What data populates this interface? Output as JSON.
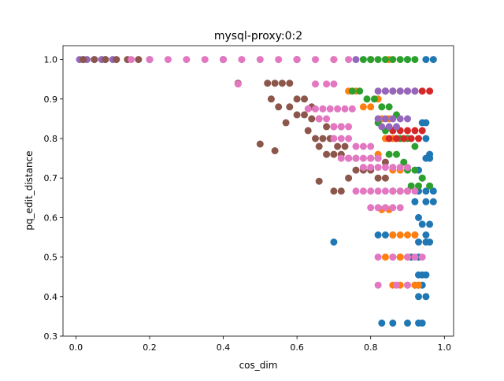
{
  "chart_data": {
    "type": "scatter",
    "title": "mysql-proxy:0:2",
    "xlabel": "cos_dim",
    "ylabel": "pq_edit_distance",
    "xlim": [
      -0.035,
      1.025
    ],
    "ylim": [
      0.3,
      1.035
    ],
    "xticks": [
      0.0,
      0.2,
      0.4,
      0.6,
      0.8,
      1.0
    ],
    "yticks": [
      0.3,
      0.4,
      0.5,
      0.6,
      0.7,
      0.8,
      0.9,
      1.0
    ],
    "grid": false,
    "legend": "none",
    "series": [
      {
        "color": "#1f77b4",
        "points": [
          [
            0.02,
            1.0
          ],
          [
            0.08,
            1.0
          ],
          [
            0.2,
            1.0
          ],
          [
            0.4,
            1.0
          ],
          [
            0.6,
            1.0
          ],
          [
            0.8,
            1.0
          ],
          [
            0.9,
            1.0
          ],
          [
            0.95,
            1.0
          ],
          [
            0.97,
            1.0
          ],
          [
            0.86,
            0.667
          ],
          [
            0.88,
            0.667
          ],
          [
            0.9,
            0.667
          ],
          [
            0.93,
            0.667
          ],
          [
            0.95,
            0.667
          ],
          [
            0.97,
            0.667
          ],
          [
            0.94,
            0.583
          ],
          [
            0.96,
            0.583
          ],
          [
            0.93,
            0.6
          ],
          [
            0.95,
            0.64
          ],
          [
            0.97,
            0.64
          ],
          [
            0.92,
            0.64
          ],
          [
            0.82,
            0.556
          ],
          [
            0.84,
            0.556
          ],
          [
            0.86,
            0.556
          ],
          [
            0.92,
            0.556
          ],
          [
            0.95,
            0.556
          ],
          [
            0.93,
            0.538
          ],
          [
            0.95,
            0.538
          ],
          [
            0.96,
            0.538
          ],
          [
            0.7,
            0.538
          ],
          [
            0.88,
            0.5
          ],
          [
            0.91,
            0.5
          ],
          [
            0.93,
            0.5
          ],
          [
            0.93,
            0.455
          ],
          [
            0.94,
            0.455
          ],
          [
            0.95,
            0.455
          ],
          [
            0.92,
            0.429
          ],
          [
            0.93,
            0.429
          ],
          [
            0.94,
            0.429
          ],
          [
            0.93,
            0.4
          ],
          [
            0.95,
            0.4
          ],
          [
            0.83,
            0.333
          ],
          [
            0.86,
            0.333
          ],
          [
            0.9,
            0.333
          ],
          [
            0.93,
            0.333
          ],
          [
            0.94,
            0.333
          ],
          [
            0.95,
            0.75
          ],
          [
            0.96,
            0.75
          ],
          [
            0.93,
            0.72
          ],
          [
            0.95,
            0.8
          ],
          [
            0.94,
            0.84
          ],
          [
            0.95,
            0.84
          ],
          [
            0.96,
            0.76
          ],
          [
            0.94,
            0.7
          ]
        ]
      },
      {
        "color": "#ff7f0e",
        "points": [
          [
            0.7,
            1.0
          ],
          [
            0.8,
            1.0
          ],
          [
            0.85,
            1.0
          ],
          [
            0.74,
            0.92
          ],
          [
            0.76,
            0.92
          ],
          [
            0.78,
            0.88
          ],
          [
            0.8,
            0.88
          ],
          [
            0.82,
            0.9
          ],
          [
            0.83,
            0.85
          ],
          [
            0.85,
            0.85
          ],
          [
            0.84,
            0.8
          ],
          [
            0.86,
            0.8
          ],
          [
            0.82,
            0.76
          ],
          [
            0.86,
            0.72
          ],
          [
            0.88,
            0.72
          ],
          [
            0.86,
            0.667
          ],
          [
            0.88,
            0.667
          ],
          [
            0.9,
            0.667
          ],
          [
            0.83,
            0.62
          ],
          [
            0.85,
            0.62
          ],
          [
            0.86,
            0.556
          ],
          [
            0.88,
            0.556
          ],
          [
            0.9,
            0.556
          ],
          [
            0.92,
            0.556
          ],
          [
            0.84,
            0.5
          ],
          [
            0.86,
            0.5
          ],
          [
            0.88,
            0.5
          ],
          [
            0.9,
            0.5
          ],
          [
            0.86,
            0.429
          ],
          [
            0.88,
            0.429
          ],
          [
            0.9,
            0.429
          ],
          [
            0.92,
            0.429
          ],
          [
            0.93,
            0.429
          ]
        ]
      },
      {
        "color": "#2ca02c",
        "points": [
          [
            0.78,
            1.0
          ],
          [
            0.8,
            1.0
          ],
          [
            0.82,
            1.0
          ],
          [
            0.84,
            1.0
          ],
          [
            0.86,
            1.0
          ],
          [
            0.88,
            1.0
          ],
          [
            0.9,
            1.0
          ],
          [
            0.92,
            1.0
          ],
          [
            0.75,
            0.92
          ],
          [
            0.77,
            0.92
          ],
          [
            0.79,
            0.9
          ],
          [
            0.81,
            0.9
          ],
          [
            0.83,
            0.88
          ],
          [
            0.85,
            0.88
          ],
          [
            0.87,
            0.86
          ],
          [
            0.82,
            0.84
          ],
          [
            0.84,
            0.82
          ],
          [
            0.86,
            0.82
          ],
          [
            0.88,
            0.8
          ],
          [
            0.9,
            0.8
          ],
          [
            0.92,
            0.78
          ],
          [
            0.85,
            0.76
          ],
          [
            0.87,
            0.76
          ],
          [
            0.89,
            0.74
          ],
          [
            0.9,
            0.72
          ],
          [
            0.92,
            0.72
          ],
          [
            0.94,
            0.7
          ],
          [
            0.91,
            0.68
          ],
          [
            0.93,
            0.68
          ],
          [
            0.96,
            0.68
          ]
        ]
      },
      {
        "color": "#d62728",
        "points": [
          [
            0.84,
            0.92
          ],
          [
            0.86,
            0.92
          ],
          [
            0.88,
            0.92
          ],
          [
            0.9,
            0.92
          ],
          [
            0.92,
            0.92
          ],
          [
            0.94,
            0.92
          ],
          [
            0.96,
            0.92
          ],
          [
            0.86,
            0.82
          ],
          [
            0.88,
            0.82
          ],
          [
            0.9,
            0.82
          ],
          [
            0.92,
            0.82
          ],
          [
            0.94,
            0.82
          ],
          [
            0.85,
            0.8
          ],
          [
            0.87,
            0.8
          ],
          [
            0.89,
            0.8
          ],
          [
            0.91,
            0.8
          ],
          [
            0.93,
            0.8
          ]
        ]
      },
      {
        "color": "#9467bd",
        "points": [
          [
            0.01,
            1.0
          ],
          [
            0.03,
            1.0
          ],
          [
            0.05,
            1.0
          ],
          [
            0.07,
            1.0
          ],
          [
            0.1,
            1.0
          ],
          [
            0.4,
            1.0
          ],
          [
            0.6,
            1.0
          ],
          [
            0.76,
            1.0
          ],
          [
            0.82,
            0.92
          ],
          [
            0.84,
            0.92
          ],
          [
            0.86,
            0.92
          ],
          [
            0.88,
            0.92
          ],
          [
            0.9,
            0.92
          ],
          [
            0.92,
            0.92
          ],
          [
            0.82,
            0.85
          ],
          [
            0.84,
            0.85
          ],
          [
            0.86,
            0.85
          ],
          [
            0.88,
            0.85
          ],
          [
            0.9,
            0.85
          ],
          [
            0.83,
            0.83
          ],
          [
            0.85,
            0.83
          ],
          [
            0.87,
            0.83
          ]
        ]
      },
      {
        "color": "#8c564b",
        "points": [
          [
            0.02,
            1.0
          ],
          [
            0.05,
            1.0
          ],
          [
            0.08,
            1.0
          ],
          [
            0.11,
            1.0
          ],
          [
            0.14,
            1.0
          ],
          [
            0.17,
            1.0
          ],
          [
            0.44,
            0.94
          ],
          [
            0.52,
            0.94
          ],
          [
            0.54,
            0.94
          ],
          [
            0.56,
            0.94
          ],
          [
            0.58,
            0.94
          ],
          [
            0.53,
            0.9
          ],
          [
            0.55,
            0.88
          ],
          [
            0.58,
            0.88
          ],
          [
            0.6,
            0.9
          ],
          [
            0.62,
            0.9
          ],
          [
            0.64,
            0.88
          ],
          [
            0.6,
            0.86
          ],
          [
            0.62,
            0.86
          ],
          [
            0.64,
            0.85
          ],
          [
            0.66,
            0.85
          ],
          [
            0.68,
            0.83
          ],
          [
            0.7,
            0.83
          ],
          [
            0.72,
            0.83
          ],
          [
            0.57,
            0.84
          ],
          [
            0.63,
            0.82
          ],
          [
            0.65,
            0.8
          ],
          [
            0.67,
            0.8
          ],
          [
            0.69,
            0.8
          ],
          [
            0.71,
            0.78
          ],
          [
            0.73,
            0.78
          ],
          [
            0.66,
            0.78
          ],
          [
            0.68,
            0.76
          ],
          [
            0.7,
            0.76
          ],
          [
            0.72,
            0.76
          ],
          [
            0.74,
            0.75
          ],
          [
            0.76,
            0.75
          ],
          [
            0.5,
            0.786
          ],
          [
            0.54,
            0.769
          ],
          [
            0.66,
            0.692
          ],
          [
            0.7,
            0.667
          ],
          [
            0.72,
            0.667
          ],
          [
            0.74,
            0.7
          ],
          [
            0.76,
            0.72
          ],
          [
            0.78,
            0.72
          ],
          [
            0.8,
            0.72
          ],
          [
            0.82,
            0.7
          ],
          [
            0.84,
            0.7
          ],
          [
            0.8,
            0.75
          ],
          [
            0.82,
            0.75
          ],
          [
            0.84,
            0.74
          ]
        ]
      },
      {
        "color": "#e377c2",
        "points": [
          [
            0.15,
            1.0
          ],
          [
            0.2,
            1.0
          ],
          [
            0.25,
            1.0
          ],
          [
            0.3,
            1.0
          ],
          [
            0.35,
            1.0
          ],
          [
            0.4,
            1.0
          ],
          [
            0.45,
            1.0
          ],
          [
            0.5,
            1.0
          ],
          [
            0.55,
            1.0
          ],
          [
            0.6,
            1.0
          ],
          [
            0.65,
            1.0
          ],
          [
            0.7,
            1.0
          ],
          [
            0.74,
            1.0
          ],
          [
            0.44,
            0.938
          ],
          [
            0.65,
            0.938
          ],
          [
            0.68,
            0.938
          ],
          [
            0.7,
            0.938
          ],
          [
            0.63,
            0.875
          ],
          [
            0.65,
            0.875
          ],
          [
            0.67,
            0.875
          ],
          [
            0.69,
            0.875
          ],
          [
            0.71,
            0.875
          ],
          [
            0.73,
            0.875
          ],
          [
            0.75,
            0.875
          ],
          [
            0.66,
            0.85
          ],
          [
            0.68,
            0.85
          ],
          [
            0.7,
            0.83
          ],
          [
            0.72,
            0.83
          ],
          [
            0.74,
            0.83
          ],
          [
            0.7,
            0.8
          ],
          [
            0.72,
            0.8
          ],
          [
            0.74,
            0.8
          ],
          [
            0.76,
            0.78
          ],
          [
            0.78,
            0.78
          ],
          [
            0.8,
            0.78
          ],
          [
            0.72,
            0.75
          ],
          [
            0.74,
            0.75
          ],
          [
            0.76,
            0.75
          ],
          [
            0.78,
            0.75
          ],
          [
            0.8,
            0.75
          ],
          [
            0.82,
            0.75
          ],
          [
            0.78,
            0.727
          ],
          [
            0.8,
            0.727
          ],
          [
            0.82,
            0.727
          ],
          [
            0.84,
            0.727
          ],
          [
            0.86,
            0.727
          ],
          [
            0.88,
            0.727
          ],
          [
            0.9,
            0.727
          ],
          [
            0.76,
            0.667
          ],
          [
            0.78,
            0.667
          ],
          [
            0.8,
            0.667
          ],
          [
            0.82,
            0.667
          ],
          [
            0.84,
            0.667
          ],
          [
            0.86,
            0.667
          ],
          [
            0.88,
            0.667
          ],
          [
            0.9,
            0.667
          ],
          [
            0.92,
            0.667
          ],
          [
            0.8,
            0.625
          ],
          [
            0.82,
            0.625
          ],
          [
            0.84,
            0.625
          ],
          [
            0.86,
            0.625
          ],
          [
            0.88,
            0.625
          ],
          [
            0.82,
            0.5
          ],
          [
            0.86,
            0.5
          ],
          [
            0.9,
            0.5
          ],
          [
            0.92,
            0.5
          ],
          [
            0.94,
            0.5
          ],
          [
            0.82,
            0.429
          ],
          [
            0.87,
            0.429
          ],
          [
            0.9,
            0.429
          ]
        ]
      }
    ]
  }
}
